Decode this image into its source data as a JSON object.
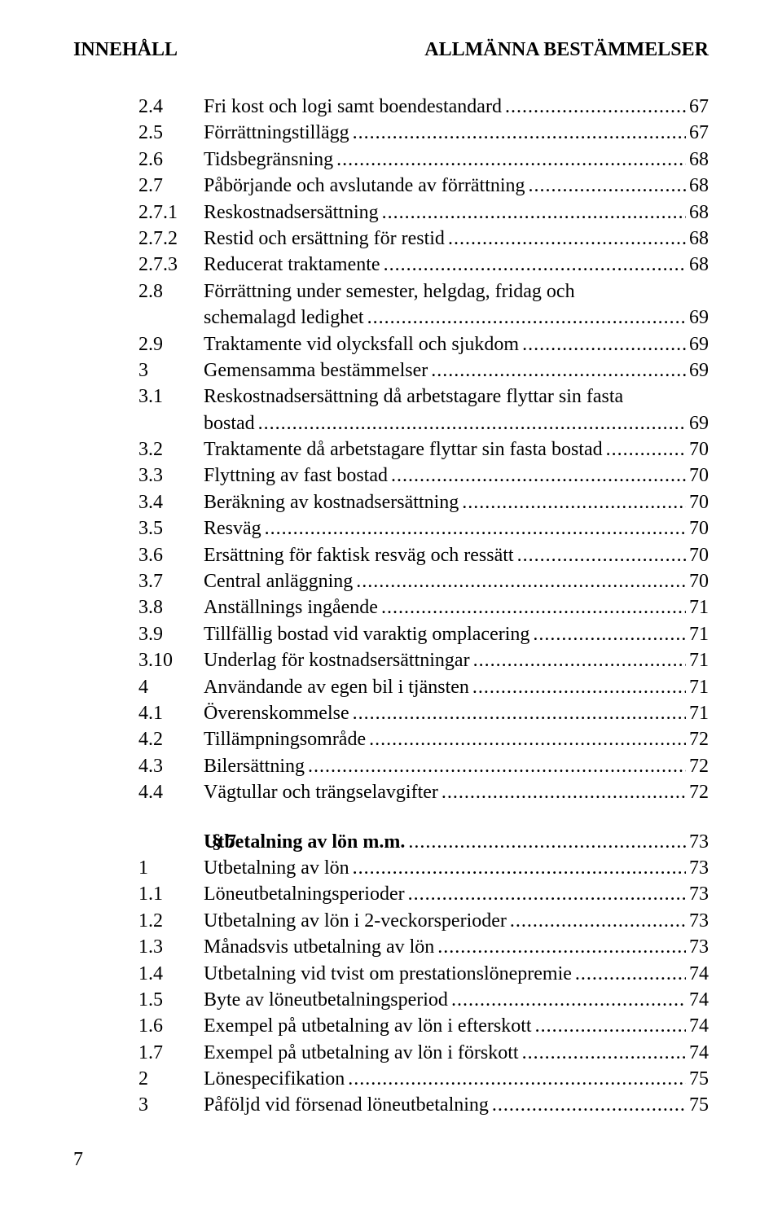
{
  "header": {
    "left": "INNEHÅLL",
    "right": "ALLMÄNNA BESTÄMMELSER"
  },
  "blocks": [
    {
      "section": null,
      "entries": [
        {
          "num": "2.4",
          "title": "Fri kost och logi samt boendestandard",
          "page": "67"
        },
        {
          "num": "2.5",
          "title": "Förrättningstillägg",
          "page": "67"
        },
        {
          "num": "2.6",
          "title": "Tidsbegränsning",
          "page": "68"
        },
        {
          "num": "2.7",
          "title": "Påbörjande och avslutande av förrättning",
          "page": "68"
        },
        {
          "num": "2.7.1",
          "title": "Reskostnadsersättning",
          "page": "68"
        },
        {
          "num": "2.7.2",
          "title": "Restid och ersättning för restid",
          "page": "68"
        },
        {
          "num": "2.7.3",
          "title": "Reducerat traktamente",
          "page": "68"
        },
        {
          "num": "2.8",
          "title": "Förrättning under semester, helgdag, fridag och",
          "title2": "schemalagd ledighet",
          "page": "69"
        },
        {
          "num": "2.9",
          "title": "Traktamente vid olycksfall och sjukdom",
          "page": "69"
        },
        {
          "num": "3",
          "title": "Gemensamma bestämmelser",
          "page": "69"
        },
        {
          "num": "3.1",
          "title": "Reskostnadsersättning då arbetstagare flyttar sin fasta",
          "title2": "bostad",
          "page": "69"
        },
        {
          "num": "3.2",
          "title": "Traktamente då arbetstagare flyttar sin fasta bostad",
          "page": "70"
        },
        {
          "num": "3.3",
          "title": "Flyttning av fast bostad",
          "page": "70"
        },
        {
          "num": "3.4",
          "title": "Beräkning av kostnadsersättning",
          "page": "70"
        },
        {
          "num": "3.5",
          "title": "Resväg",
          "page": "70"
        },
        {
          "num": "3.6",
          "title": "Ersättning för faktisk resväg och ressätt",
          "page": "70"
        },
        {
          "num": "3.7",
          "title": "Central anläggning",
          "page": "70"
        },
        {
          "num": "3.8",
          "title": "Anställnings ingående",
          "page": "71"
        },
        {
          "num": "3.9",
          "title": "Tillfällig bostad vid varaktig omplacering",
          "page": "71"
        },
        {
          "num": "3.10",
          "title": "Underlag för kostnadsersättningar",
          "page": "71"
        },
        {
          "num": "4",
          "title": "Användande av egen bil i tjänsten",
          "page": "71"
        },
        {
          "num": "4.1",
          "title": "Överenskommelse",
          "page": "71"
        },
        {
          "num": "4.2",
          "title": "Tillämpningsområde",
          "page": "72"
        },
        {
          "num": "4.3",
          "title": "Bilersättning",
          "page": "72"
        },
        {
          "num": "4.4",
          "title": "Vägtullar och trängselavgifter",
          "page": "72"
        }
      ]
    },
    {
      "section": "§ 7",
      "entries": [
        {
          "num": "",
          "title": "Utbetalning av lön m.m.",
          "page": "73",
          "bold": true
        },
        {
          "num": "1",
          "title": "Utbetalning av lön",
          "page": "73"
        },
        {
          "num": "1.1",
          "title": "Löneutbetalningsperioder",
          "page": "73"
        },
        {
          "num": "1.2",
          "title": "Utbetalning av lön i 2-veckorsperioder",
          "page": "73"
        },
        {
          "num": "1.3",
          "title": "Månadsvis utbetalning av lön",
          "page": "73"
        },
        {
          "num": "1.4",
          "title": "Utbetalning vid tvist om prestationslönepremie",
          "page": "74"
        },
        {
          "num": "1.5",
          "title": "Byte av löneutbetalningsperiod",
          "page": "74"
        },
        {
          "num": "1.6",
          "title": "Exempel på utbetalning av lön i efterskott",
          "page": "74"
        },
        {
          "num": "1.7",
          "title": "Exempel på utbetalning av lön i förskott",
          "page": "74"
        },
        {
          "num": "2",
          "title": "Lönespecifikation",
          "page": "75"
        },
        {
          "num": "3",
          "title": "Påföljd vid försenad löneutbetalning",
          "page": "75"
        }
      ]
    }
  ],
  "footer": "7"
}
